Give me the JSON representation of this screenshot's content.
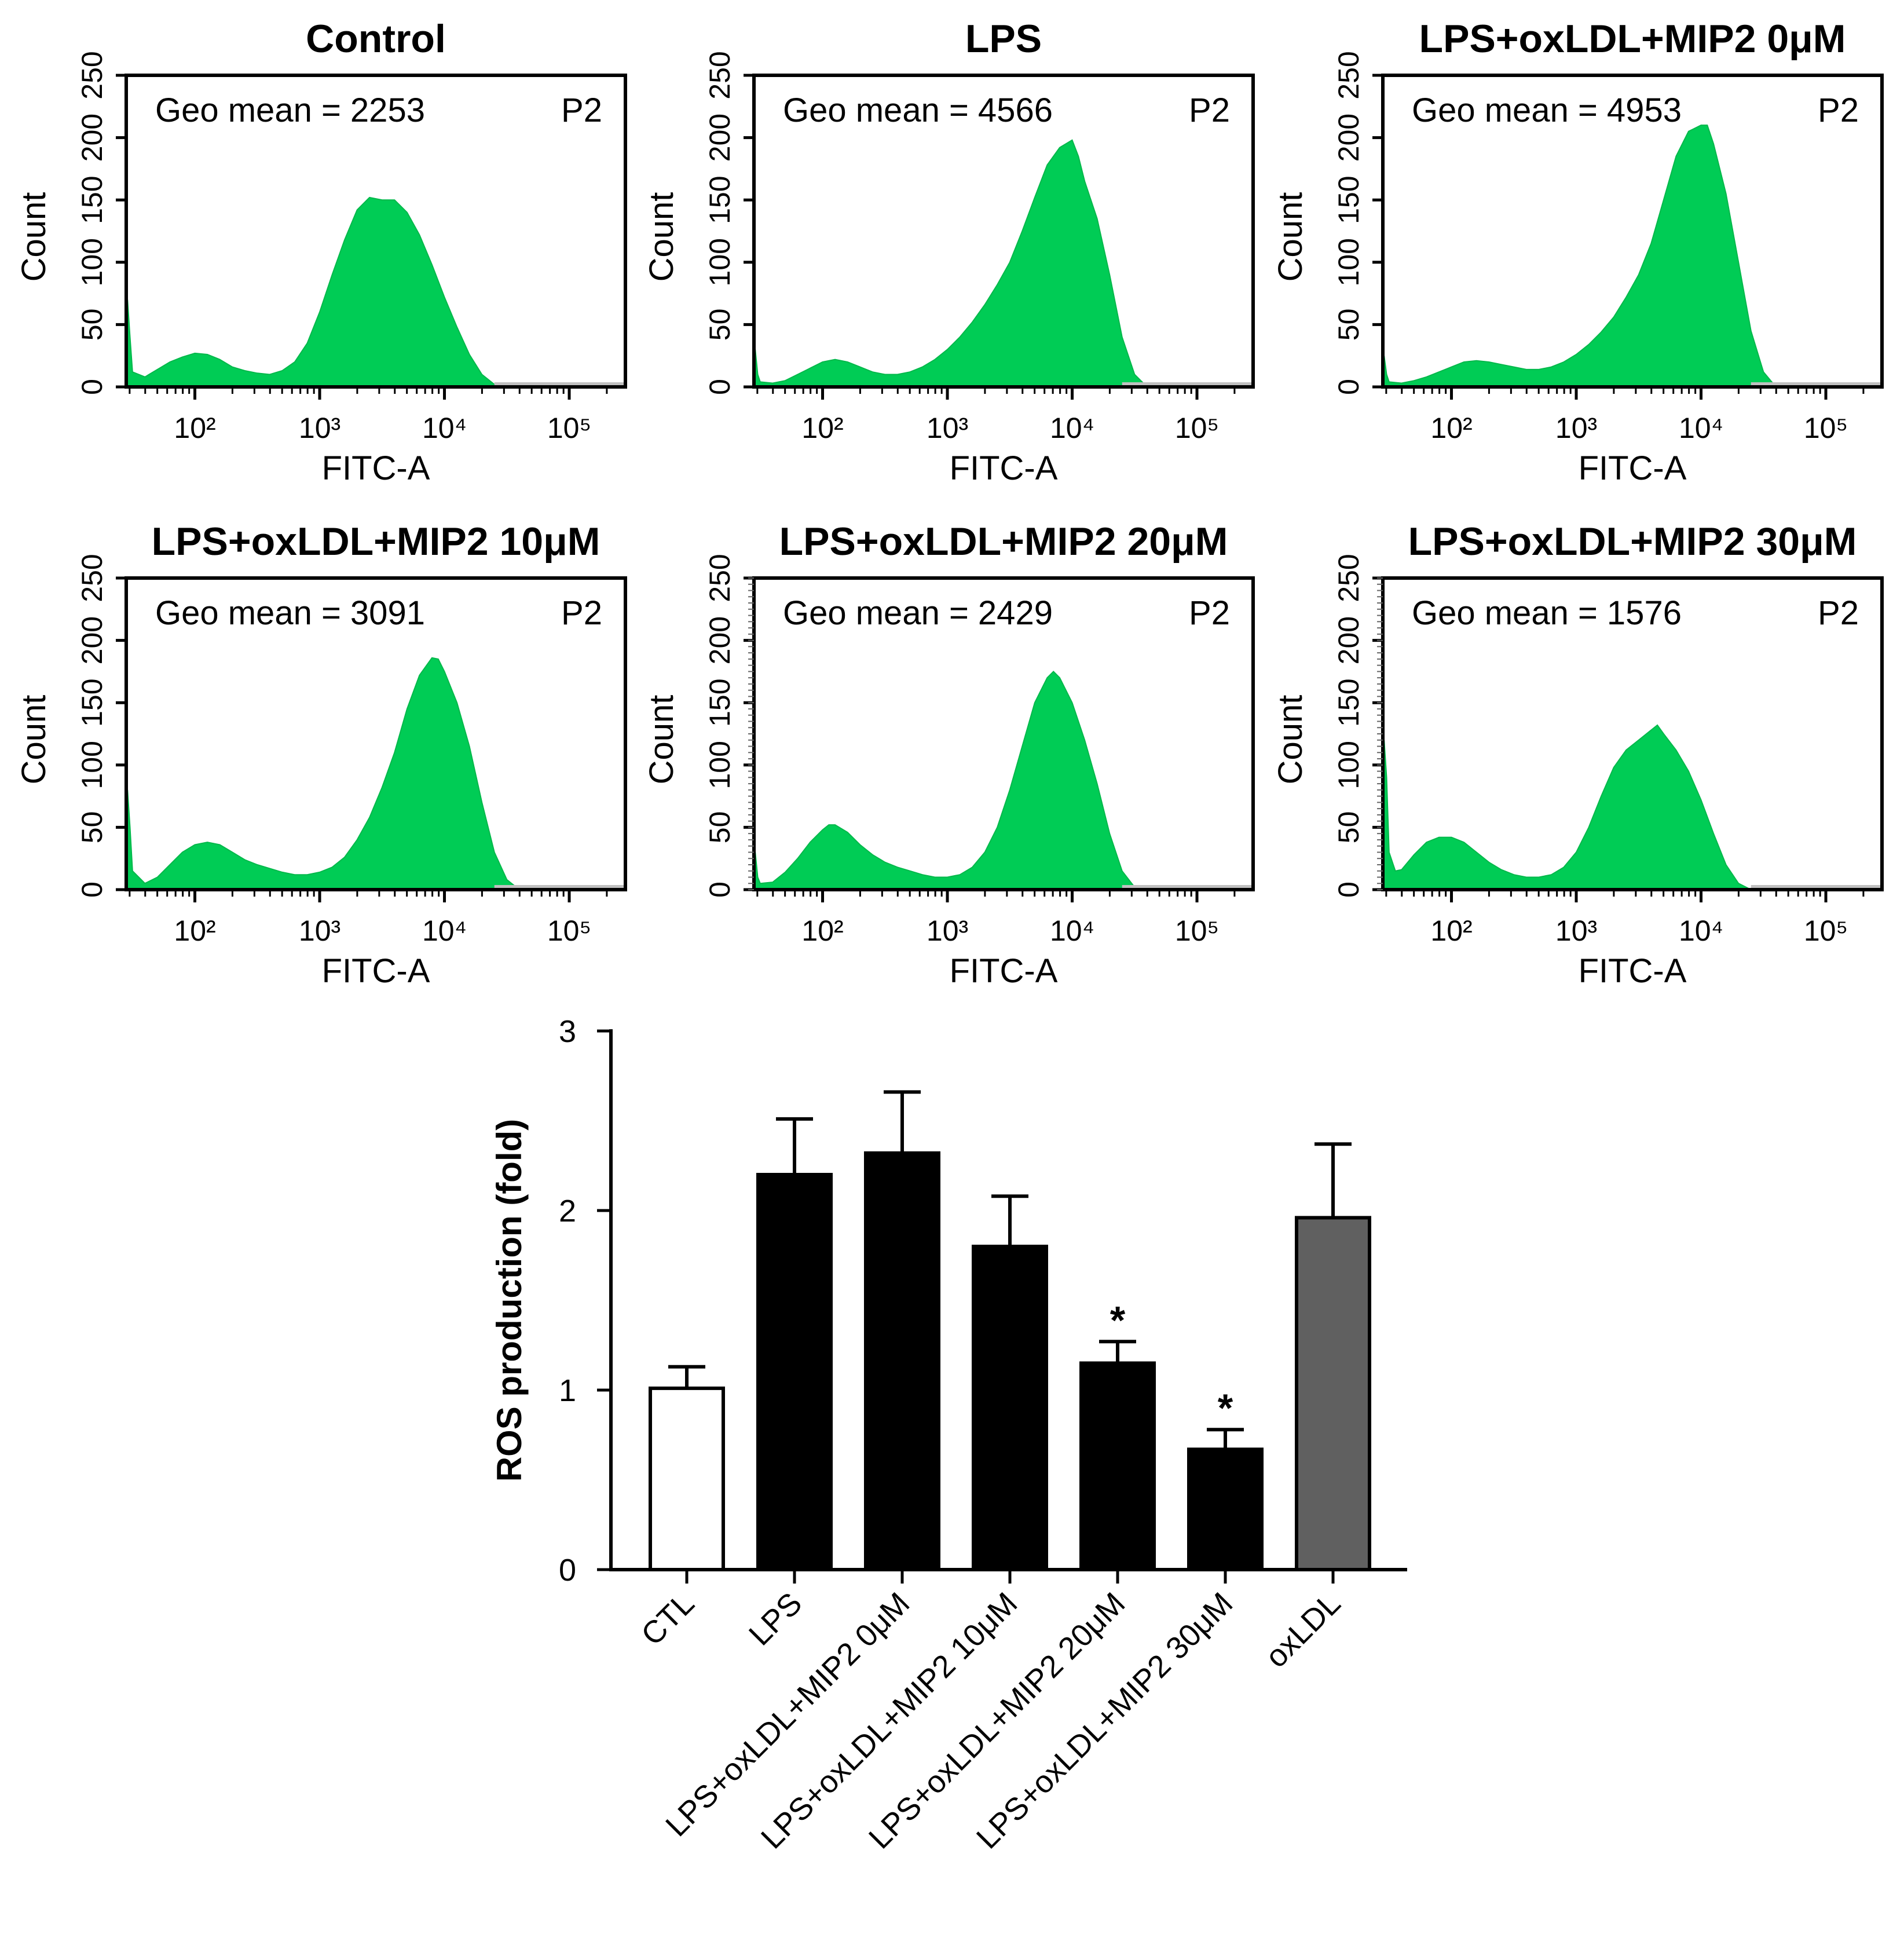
{
  "chart_data": [
    {
      "type": "area",
      "title": "Control",
      "annotation": "Geo mean = 2253",
      "gate": "P2",
      "xlabel": "FITC-A",
      "ylabel": "Count",
      "yticks": [
        "0",
        "50",
        "100",
        "150",
        "200",
        "250"
      ],
      "xticks": [
        "10²",
        "10³",
        "10⁴",
        "10⁵"
      ],
      "xlim_log10": [
        1.45,
        5.45
      ],
      "ylim": [
        0,
        250
      ],
      "color": "#00cc55",
      "series": [
        [
          1.45,
          0
        ],
        [
          1.46,
          70
        ],
        [
          1.48,
          40
        ],
        [
          1.5,
          12
        ],
        [
          1.6,
          8
        ],
        [
          1.7,
          14
        ],
        [
          1.8,
          20
        ],
        [
          1.9,
          24
        ],
        [
          2.0,
          27
        ],
        [
          2.1,
          26
        ],
        [
          2.2,
          22
        ],
        [
          2.3,
          16
        ],
        [
          2.4,
          13
        ],
        [
          2.5,
          11
        ],
        [
          2.6,
          10
        ],
        [
          2.7,
          13
        ],
        [
          2.8,
          20
        ],
        [
          2.9,
          35
        ],
        [
          3.0,
          60
        ],
        [
          3.1,
          90
        ],
        [
          3.2,
          118
        ],
        [
          3.3,
          142
        ],
        [
          3.4,
          152
        ],
        [
          3.5,
          150
        ],
        [
          3.6,
          150
        ],
        [
          3.7,
          140
        ],
        [
          3.8,
          122
        ],
        [
          3.9,
          98
        ],
        [
          4.0,
          72
        ],
        [
          4.1,
          48
        ],
        [
          4.2,
          26
        ],
        [
          4.3,
          10
        ],
        [
          4.4,
          2
        ],
        [
          4.5,
          0
        ],
        [
          5.45,
          0
        ]
      ]
    },
    {
      "type": "area",
      "title": "LPS",
      "annotation": "Geo mean = 4566",
      "gate": "P2",
      "xlabel": "FITC-A",
      "ylabel": "Count",
      "yticks": [
        "0",
        "50",
        "100",
        "150",
        "200",
        "250"
      ],
      "xticks": [
        "10²",
        "10³",
        "10⁴",
        "10⁵"
      ],
      "xlim_log10": [
        1.45,
        5.45
      ],
      "ylim": [
        0,
        250
      ],
      "color": "#00cc55",
      "series": [
        [
          1.45,
          0
        ],
        [
          1.46,
          30
        ],
        [
          1.48,
          10
        ],
        [
          1.5,
          4
        ],
        [
          1.6,
          3
        ],
        [
          1.7,
          5
        ],
        [
          1.8,
          10
        ],
        [
          1.9,
          15
        ],
        [
          2.0,
          20
        ],
        [
          2.1,
          22
        ],
        [
          2.2,
          20
        ],
        [
          2.3,
          16
        ],
        [
          2.4,
          12
        ],
        [
          2.5,
          10
        ],
        [
          2.6,
          10
        ],
        [
          2.7,
          12
        ],
        [
          2.8,
          16
        ],
        [
          2.9,
          22
        ],
        [
          3.0,
          30
        ],
        [
          3.1,
          40
        ],
        [
          3.2,
          52
        ],
        [
          3.3,
          66
        ],
        [
          3.4,
          82
        ],
        [
          3.5,
          100
        ],
        [
          3.6,
          125
        ],
        [
          3.7,
          152
        ],
        [
          3.8,
          178
        ],
        [
          3.9,
          192
        ],
        [
          4.0,
          198
        ],
        [
          4.05,
          185
        ],
        [
          4.1,
          165
        ],
        [
          4.2,
          135
        ],
        [
          4.3,
          90
        ],
        [
          4.4,
          40
        ],
        [
          4.5,
          10
        ],
        [
          4.6,
          0
        ],
        [
          5.45,
          0
        ]
      ]
    },
    {
      "type": "area",
      "title": "LPS+oxLDL+MIP2 0μM",
      "annotation": "Geo mean = 4953",
      "gate": "P2",
      "xlabel": "FITC-A",
      "ylabel": "Count",
      "yticks": [
        "0",
        "50",
        "100",
        "150",
        "200",
        "250"
      ],
      "xticks": [
        "10²",
        "10³",
        "10⁴",
        "10⁵"
      ],
      "xlim_log10": [
        1.45,
        5.45
      ],
      "ylim": [
        0,
        250
      ],
      "color": "#00cc55",
      "series": [
        [
          1.45,
          0
        ],
        [
          1.46,
          25
        ],
        [
          1.48,
          10
        ],
        [
          1.5,
          4
        ],
        [
          1.6,
          3
        ],
        [
          1.7,
          5
        ],
        [
          1.8,
          8
        ],
        [
          1.9,
          12
        ],
        [
          2.0,
          16
        ],
        [
          2.1,
          20
        ],
        [
          2.2,
          21
        ],
        [
          2.3,
          20
        ],
        [
          2.4,
          18
        ],
        [
          2.5,
          16
        ],
        [
          2.6,
          14
        ],
        [
          2.7,
          14
        ],
        [
          2.8,
          16
        ],
        [
          2.9,
          20
        ],
        [
          3.0,
          26
        ],
        [
          3.1,
          34
        ],
        [
          3.2,
          44
        ],
        [
          3.3,
          56
        ],
        [
          3.4,
          72
        ],
        [
          3.5,
          90
        ],
        [
          3.6,
          115
        ],
        [
          3.7,
          150
        ],
        [
          3.8,
          185
        ],
        [
          3.9,
          205
        ],
        [
          4.0,
          210
        ],
        [
          4.05,
          210
        ],
        [
          4.1,
          195
        ],
        [
          4.2,
          155
        ],
        [
          4.3,
          100
        ],
        [
          4.4,
          45
        ],
        [
          4.5,
          12
        ],
        [
          4.6,
          0
        ],
        [
          5.45,
          0
        ]
      ]
    },
    {
      "type": "area",
      "title": "LPS+oxLDL+MIP2 10μM",
      "annotation": "Geo mean = 3091",
      "gate": "P2",
      "xlabel": "FITC-A",
      "ylabel": "Count",
      "yticks": [
        "0",
        "50",
        "100",
        "150",
        "200",
        "250"
      ],
      "xticks": [
        "10²",
        "10³",
        "10⁴",
        "10⁵"
      ],
      "xlim_log10": [
        1.45,
        5.45
      ],
      "ylim": [
        0,
        250
      ],
      "color": "#00cc55",
      "series": [
        [
          1.45,
          0
        ],
        [
          1.46,
          80
        ],
        [
          1.48,
          50
        ],
        [
          1.5,
          15
        ],
        [
          1.6,
          5
        ],
        [
          1.7,
          10
        ],
        [
          1.8,
          20
        ],
        [
          1.9,
          30
        ],
        [
          2.0,
          36
        ],
        [
          2.1,
          38
        ],
        [
          2.2,
          36
        ],
        [
          2.3,
          30
        ],
        [
          2.4,
          24
        ],
        [
          2.5,
          20
        ],
        [
          2.6,
          17
        ],
        [
          2.7,
          14
        ],
        [
          2.8,
          12
        ],
        [
          2.9,
          12
        ],
        [
          3.0,
          14
        ],
        [
          3.1,
          18
        ],
        [
          3.2,
          26
        ],
        [
          3.3,
          40
        ],
        [
          3.4,
          58
        ],
        [
          3.5,
          82
        ],
        [
          3.6,
          110
        ],
        [
          3.7,
          145
        ],
        [
          3.8,
          172
        ],
        [
          3.9,
          186
        ],
        [
          3.95,
          185
        ],
        [
          4.0,
          175
        ],
        [
          4.1,
          150
        ],
        [
          4.2,
          115
        ],
        [
          4.3,
          70
        ],
        [
          4.4,
          30
        ],
        [
          4.5,
          8
        ],
        [
          4.6,
          0
        ],
        [
          5.45,
          0
        ]
      ]
    },
    {
      "type": "area",
      "title": "LPS+oxLDL+MIP2 20μM",
      "annotation": "Geo mean = 2429",
      "gate": "P2",
      "xlabel": "FITC-A",
      "ylabel": "Count",
      "yticks": [
        "0",
        "50",
        "100",
        "150",
        "200",
        "250"
      ],
      "xticks": [
        "10²",
        "10³",
        "10⁴",
        "10⁵"
      ],
      "xlim_log10": [
        1.45,
        5.45
      ],
      "ylim": [
        0,
        250
      ],
      "color": "#00cc55",
      "series": [
        [
          1.45,
          0
        ],
        [
          1.46,
          30
        ],
        [
          1.48,
          10
        ],
        [
          1.5,
          5
        ],
        [
          1.6,
          6
        ],
        [
          1.7,
          14
        ],
        [
          1.8,
          25
        ],
        [
          1.9,
          38
        ],
        [
          2.0,
          48
        ],
        [
          2.05,
          52
        ],
        [
          2.1,
          52
        ],
        [
          2.2,
          46
        ],
        [
          2.3,
          36
        ],
        [
          2.4,
          28
        ],
        [
          2.5,
          22
        ],
        [
          2.6,
          18
        ],
        [
          2.7,
          15
        ],
        [
          2.8,
          12
        ],
        [
          2.9,
          10
        ],
        [
          3.0,
          10
        ],
        [
          3.1,
          12
        ],
        [
          3.2,
          18
        ],
        [
          3.3,
          30
        ],
        [
          3.4,
          50
        ],
        [
          3.5,
          80
        ],
        [
          3.6,
          115
        ],
        [
          3.7,
          150
        ],
        [
          3.8,
          170
        ],
        [
          3.85,
          175
        ],
        [
          3.9,
          170
        ],
        [
          4.0,
          150
        ],
        [
          4.1,
          120
        ],
        [
          4.2,
          85
        ],
        [
          4.3,
          45
        ],
        [
          4.4,
          15
        ],
        [
          4.5,
          2
        ],
        [
          4.6,
          0
        ],
        [
          5.45,
          0
        ]
      ]
    },
    {
      "type": "area",
      "title": "LPS+oxLDL+MIP2 30μM",
      "annotation": "Geo mean = 1576",
      "gate": "P2",
      "xlabel": "FITC-A",
      "ylabel": "Count",
      "yticks": [
        "0",
        "50",
        "100",
        "150",
        "200",
        "250"
      ],
      "xticks": [
        "10²",
        "10³",
        "10⁴",
        "10⁵"
      ],
      "xlim_log10": [
        1.45,
        5.45
      ],
      "ylim": [
        0,
        250
      ],
      "color": "#00cc55",
      "series": [
        [
          1.45,
          0
        ],
        [
          1.46,
          120
        ],
        [
          1.48,
          90
        ],
        [
          1.5,
          30
        ],
        [
          1.55,
          15
        ],
        [
          1.6,
          16
        ],
        [
          1.7,
          28
        ],
        [
          1.8,
          38
        ],
        [
          1.9,
          42
        ],
        [
          2.0,
          42
        ],
        [
          2.1,
          38
        ],
        [
          2.2,
          30
        ],
        [
          2.3,
          22
        ],
        [
          2.4,
          16
        ],
        [
          2.5,
          12
        ],
        [
          2.6,
          10
        ],
        [
          2.7,
          10
        ],
        [
          2.8,
          12
        ],
        [
          2.9,
          18
        ],
        [
          3.0,
          30
        ],
        [
          3.1,
          50
        ],
        [
          3.2,
          75
        ],
        [
          3.3,
          98
        ],
        [
          3.4,
          112
        ],
        [
          3.5,
          120
        ],
        [
          3.6,
          128
        ],
        [
          3.65,
          132
        ],
        [
          3.7,
          125
        ],
        [
          3.8,
          112
        ],
        [
          3.9,
          95
        ],
        [
          4.0,
          72
        ],
        [
          4.1,
          45
        ],
        [
          4.2,
          20
        ],
        [
          4.3,
          5
        ],
        [
          4.4,
          0
        ],
        [
          5.45,
          0
        ]
      ]
    },
    {
      "type": "bar",
      "title": "",
      "ylabel": "ROS production (fold)",
      "xlabel": "",
      "ylim": [
        0,
        3
      ],
      "yticks": [
        "0",
        "1",
        "2",
        "3"
      ],
      "categories": [
        "CTL",
        "LPS",
        "LPS+oxLDL+MIP2 0μM",
        "LPS+oxLDL+MIP2 10μM",
        "LPS+oxLDL+MIP2 20μM",
        "LPS+oxLDL+MIP2 30μM",
        "oxLDL"
      ],
      "values": [
        1.01,
        2.2,
        2.32,
        1.8,
        1.15,
        0.67,
        1.96
      ],
      "errors": [
        0.12,
        0.31,
        0.34,
        0.28,
        0.12,
        0.11,
        0.41
      ],
      "colors": [
        "#ffffff",
        "#000000",
        "#000000",
        "#000000",
        "#000000",
        "#000000",
        "#606060"
      ],
      "significance": [
        "",
        "",
        "",
        "",
        "*",
        "*",
        ""
      ]
    }
  ]
}
